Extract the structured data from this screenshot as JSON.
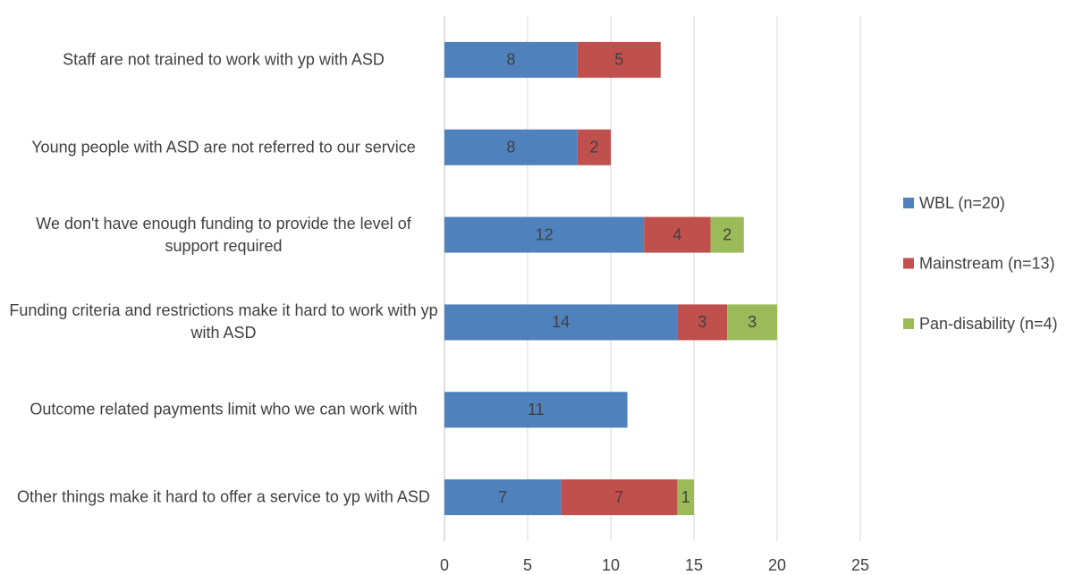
{
  "chart_data": {
    "type": "stacked-bar-horizontal",
    "categories": [
      "Staff are not trained to work with yp with ASD",
      "Young people with ASD are not referred to our service",
      "We don't have enough funding to provide the level of support required",
      "Funding criteria and restrictions make it hard to work with yp with ASD",
      "Outcome related payments limit who we can work with",
      "Other things make it hard to offer a service to yp with ASD"
    ],
    "series": [
      {
        "name": "WBL (n=20)",
        "color": "#4f81bd",
        "values": [
          8,
          8,
          12,
          14,
          11,
          7
        ]
      },
      {
        "name": "Mainstream (n=13)",
        "color": "#c0504d",
        "values": [
          5,
          2,
          4,
          3,
          null,
          7
        ]
      },
      {
        "name": "Pan-disability (n=4)",
        "color": "#9bbb59",
        "values": [
          null,
          null,
          2,
          3,
          null,
          1
        ]
      }
    ],
    "xlim": [
      0,
      25
    ],
    "xticks": [
      0,
      5,
      10,
      15,
      20,
      25
    ],
    "grid": true,
    "legend": "right"
  }
}
